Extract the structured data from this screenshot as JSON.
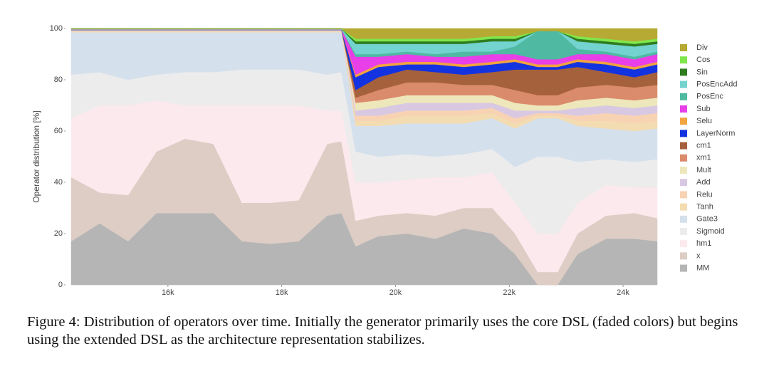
{
  "chart_data": {
    "type": "stacked-area",
    "y_label": "Operator distribution [%]",
    "caption": "Figure 4: Distribution of operators over time. Initially the generator primarily uses the core DSL (faded colors) but begins using the extended DSL as the architecture representation stabilizes.",
    "x": [
      14300,
      14800,
      15300,
      15800,
      16300,
      16800,
      17300,
      17800,
      18300,
      18800,
      19050,
      19300,
      19700,
      20200,
      20700,
      21200,
      21700,
      22100,
      22500,
      22850,
      23200,
      23700,
      24200,
      24600
    ],
    "xlim": [
      14200,
      24650
    ],
    "xticks": [
      {
        "value": 16000,
        "label": "16k"
      },
      {
        "value": 18000,
        "label": "18k"
      },
      {
        "value": 20000,
        "label": "20k"
      },
      {
        "value": 22000,
        "label": "22k"
      },
      {
        "value": 24000,
        "label": "24k"
      }
    ],
    "ylim": [
      0,
      100
    ],
    "yticks": [
      0,
      20,
      40,
      60,
      80,
      100
    ],
    "series": [
      {
        "name": "MM",
        "color": "#b5b5b5",
        "values": [
          17,
          24,
          17,
          28,
          28,
          28,
          17,
          16,
          17,
          27,
          28,
          15,
          19,
          20,
          18,
          22,
          20,
          12,
          0,
          0,
          12,
          18,
          18,
          17
        ]
      },
      {
        "name": "x",
        "color": "#ddcdc5",
        "values": [
          25,
          12,
          18,
          24,
          29,
          27,
          15,
          16,
          16,
          28,
          28,
          10,
          8,
          8,
          9,
          8,
          10,
          8,
          5,
          5,
          8,
          9,
          10,
          9
        ]
      },
      {
        "name": "hm1",
        "color": "#fbe9ed",
        "values": [
          23,
          34,
          35,
          20,
          13,
          15,
          38,
          38,
          37,
          13,
          12,
          15,
          13,
          13,
          15,
          12,
          14,
          12,
          15,
          15,
          12,
          12,
          10,
          12
        ]
      },
      {
        "name": "Sigmoid",
        "color": "#ececec",
        "values": [
          17,
          13,
          10,
          10,
          13,
          13,
          14,
          14,
          14,
          14,
          15,
          12,
          10,
          10,
          8,
          9,
          9,
          14,
          30,
          30,
          16,
          10,
          10,
          11
        ]
      },
      {
        "name": "Gate3",
        "color": "#d5e0ed",
        "values": [
          16.5,
          15.5,
          18.5,
          16.5,
          15.5,
          15.5,
          14.5,
          14.5,
          14.5,
          16.5,
          15.5,
          10,
          12,
          12,
          13,
          12,
          12,
          15,
          15,
          15,
          14,
          12,
          12,
          12
        ]
      },
      {
        "name": "Tanh",
        "color": "#f3dcb2",
        "values": [
          0.3,
          0.3,
          0.3,
          0.3,
          0.3,
          0.3,
          0.3,
          0.3,
          0.3,
          0.3,
          0.3,
          2,
          2,
          3,
          3,
          3,
          2,
          2,
          1,
          1,
          2,
          3,
          3,
          3
        ]
      },
      {
        "name": "Relu",
        "color": "#f8d3b3",
        "values": [
          0.2,
          0.2,
          0.2,
          0.2,
          0.2,
          0.2,
          0.2,
          0.2,
          0.2,
          0.2,
          0.2,
          2,
          2,
          2,
          2,
          2,
          2,
          2,
          1,
          1,
          2,
          3,
          3,
          3
        ]
      },
      {
        "name": "Add",
        "color": "#d9c8e2",
        "values": [
          0.2,
          0.2,
          0.2,
          0.2,
          0.2,
          0.2,
          0.2,
          0.2,
          0.2,
          0.2,
          0.2,
          2,
          3,
          3,
          3,
          3,
          2,
          3,
          1,
          1,
          3,
          3,
          3,
          3
        ]
      },
      {
        "name": "Mult",
        "color": "#eee7bb",
        "values": [
          0.2,
          0.2,
          0.2,
          0.2,
          0.2,
          0.2,
          0.2,
          0.2,
          0.2,
          0.2,
          0.2,
          3,
          3,
          3,
          3,
          3,
          3,
          3,
          2,
          2,
          3,
          3,
          3,
          3
        ]
      },
      {
        "name": "xm1",
        "color": "#da8b6c",
        "values": [
          0,
          0,
          0,
          0,
          0,
          0,
          0,
          0,
          0,
          0,
          0,
          2,
          4,
          5,
          5,
          4,
          4,
          5,
          4,
          4,
          5,
          5,
          5,
          5
        ]
      },
      {
        "name": "cm1",
        "color": "#a5613c",
        "values": [
          0,
          0,
          0,
          0,
          0,
          0,
          0,
          0,
          0,
          0,
          0,
          3,
          5,
          5,
          4,
          4,
          5,
          8,
          10,
          10,
          8,
          5,
          4,
          5
        ]
      },
      {
        "name": "LayerNorm",
        "color": "#1433e0",
        "values": [
          0.1,
          0.1,
          0.1,
          0.1,
          0.1,
          0.1,
          0.1,
          0.1,
          0.1,
          0.1,
          0.1,
          5,
          4,
          2,
          3,
          3,
          3,
          3,
          1,
          1,
          2,
          3,
          3,
          3
        ]
      },
      {
        "name": "Selu",
        "color": "#f2a43e",
        "values": [
          0.1,
          0.1,
          0.1,
          0.1,
          0.1,
          0.1,
          0.1,
          0.1,
          0.1,
          0.1,
          0.1,
          1,
          1,
          1,
          1,
          1,
          1,
          1,
          1,
          1,
          1,
          1,
          1,
          1
        ]
      },
      {
        "name": "Sub",
        "color": "#e83fe8",
        "values": [
          0.1,
          0.1,
          0.1,
          0.1,
          0.1,
          0.1,
          0.1,
          0.1,
          0.1,
          0.1,
          0.1,
          7,
          3,
          3,
          2,
          3,
          3,
          2,
          2,
          2,
          2,
          3,
          3,
          3
        ]
      },
      {
        "name": "PosEnc",
        "color": "#4fb9a2",
        "values": [
          0,
          0,
          0,
          0,
          0,
          0,
          0,
          0,
          0,
          0,
          0,
          1,
          1,
          1,
          1,
          2,
          1,
          3,
          11,
          11,
          2,
          1,
          1,
          1
        ]
      },
      {
        "name": "PosEncAdd",
        "color": "#72d3cf",
        "values": [
          0.1,
          0.1,
          0.1,
          0.1,
          0.1,
          0.1,
          0.1,
          0.1,
          0.1,
          0.1,
          0.1,
          4,
          4,
          3,
          4,
          3,
          4,
          2,
          0,
          0,
          3,
          3,
          4,
          3
        ]
      },
      {
        "name": "Sin",
        "color": "#2f7d20",
        "values": [
          0.1,
          0.1,
          0.1,
          0.1,
          0.1,
          0.1,
          0.1,
          0.1,
          0.1,
          0.1,
          0.1,
          1,
          1,
          1,
          1,
          1,
          1,
          1,
          0,
          0,
          1,
          1,
          1,
          1
        ]
      },
      {
        "name": "Cos",
        "color": "#80e64c",
        "values": [
          0.1,
          0.1,
          0.1,
          0.1,
          0.1,
          0.1,
          0.1,
          0.1,
          0.1,
          0.1,
          0.1,
          1,
          1,
          1,
          1,
          1,
          1,
          1,
          0,
          0,
          1,
          1,
          1,
          1
        ]
      },
      {
        "name": "Div",
        "color": "#b6a934",
        "values": [
          0,
          0,
          0,
          0,
          0,
          0,
          0,
          0,
          0,
          0,
          0,
          4,
          4,
          4,
          4,
          4,
          3,
          3,
          1,
          1,
          3,
          4,
          5,
          4
        ]
      }
    ]
  }
}
